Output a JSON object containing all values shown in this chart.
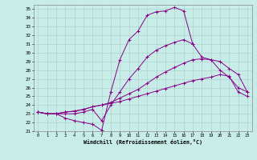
{
  "xlabel": "Windchill (Refroidissement éolien,°C)",
  "background_color": "#c8ede8",
  "grid_color": "#a8ccc8",
  "line_color": "#880088",
  "xlim_min": -0.5,
  "xlim_max": 23.5,
  "ylim_min": 21,
  "ylim_max": 35.5,
  "yticks": [
    21,
    22,
    23,
    24,
    25,
    26,
    27,
    28,
    29,
    30,
    31,
    32,
    33,
    34,
    35
  ],
  "xticks": [
    0,
    1,
    2,
    3,
    4,
    5,
    6,
    7,
    8,
    9,
    10,
    11,
    12,
    13,
    14,
    15,
    16,
    17,
    18,
    19,
    20,
    21,
    22,
    23
  ],
  "series": [
    {
      "x": [
        0,
        1,
        2,
        3,
        4,
        5,
        6,
        7,
        8,
        9,
        10,
        11,
        12,
        13,
        14,
        15,
        16,
        17
      ],
      "y": [
        23.2,
        23.0,
        23.0,
        22.5,
        22.2,
        22.0,
        21.8,
        21.1,
        25.5,
        29.2,
        31.5,
        32.5,
        34.3,
        34.7,
        34.8,
        35.2,
        34.8,
        31.0
      ]
    },
    {
      "x": [
        0,
        1,
        2,
        3,
        4,
        5,
        6,
        7,
        8,
        9,
        10,
        11,
        12,
        13,
        14,
        15,
        16,
        17,
        18,
        19,
        20,
        21,
        22,
        23
      ],
      "y": [
        23.2,
        23.0,
        23.0,
        23.0,
        23.0,
        23.2,
        23.5,
        22.2,
        24.0,
        25.5,
        27.0,
        28.2,
        29.5,
        30.3,
        30.8,
        31.2,
        31.5,
        31.0,
        29.5,
        29.2,
        28.0,
        27.2,
        26.0,
        25.5
      ]
    },
    {
      "x": [
        0,
        1,
        2,
        3,
        4,
        5,
        6,
        7,
        8,
        9,
        10,
        11,
        12,
        13,
        14,
        15,
        16,
        17,
        18,
        19,
        20,
        21,
        22,
        23
      ],
      "y": [
        23.2,
        23.0,
        23.0,
        23.2,
        23.3,
        23.5,
        23.8,
        24.0,
        24.3,
        24.8,
        25.3,
        25.8,
        26.5,
        27.2,
        27.8,
        28.3,
        28.8,
        29.2,
        29.3,
        29.2,
        29.0,
        28.2,
        27.5,
        25.5
      ]
    },
    {
      "x": [
        0,
        1,
        2,
        3,
        4,
        5,
        6,
        7,
        8,
        9,
        10,
        11,
        12,
        13,
        14,
        15,
        16,
        17,
        18,
        19,
        20,
        21,
        22,
        23
      ],
      "y": [
        23.2,
        23.0,
        23.0,
        23.2,
        23.3,
        23.5,
        23.8,
        24.0,
        24.2,
        24.4,
        24.7,
        25.0,
        25.3,
        25.6,
        25.9,
        26.2,
        26.5,
        26.8,
        27.0,
        27.2,
        27.5,
        27.3,
        25.5,
        25.0
      ]
    }
  ]
}
